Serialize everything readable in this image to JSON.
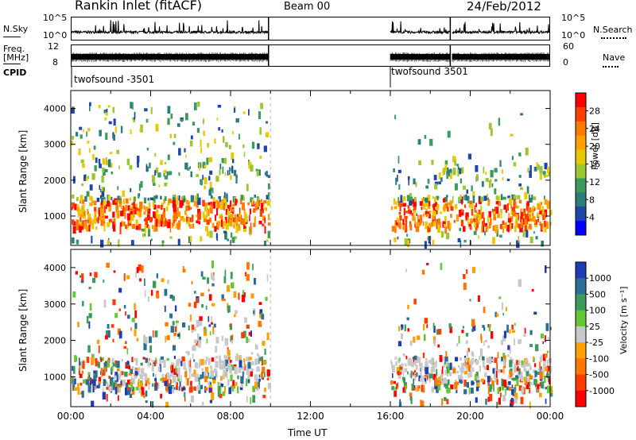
{
  "header": {
    "station": "Rankin Inlet (fitACF)",
    "beam": "Beam 00",
    "date": "24/Feb/2012"
  },
  "left_labels": {
    "nsky": "N.Sky",
    "freq_line1": "Freq.",
    "freq_line2": "[MHz]",
    "cpid": "CPID"
  },
  "right_labels": {
    "nsearch": "N.Search",
    "nave": "Nave"
  },
  "noise_axis_left": [
    "10^5",
    "10^0"
  ],
  "noise_axis_right": [
    "10^5",
    "10^0"
  ],
  "freq_axis_left": [
    "12",
    "8"
  ],
  "freq_axis_right": [
    "60",
    "0"
  ],
  "cpid_labels": [
    "twofsound -3501",
    "twofsound 3501"
  ],
  "chart_data": {
    "type": "heatmap",
    "time_ticks": [
      "00:00",
      "04:00",
      "08:00",
      "12:00",
      "16:00",
      "20:00",
      "00:00"
    ],
    "xlabel": "Time UT",
    "xlim_hours": [
      0,
      24
    ],
    "ylabel": "Slant Range [km]",
    "ylim_km": [
      180,
      4500
    ],
    "yticks": [
      "1000",
      "2000",
      "3000",
      "4000"
    ],
    "data_segments_hours": [
      [
        0,
        9.9
      ],
      [
        16.0,
        19.0
      ],
      [
        19.1,
        24
      ]
    ],
    "panels": [
      {
        "parameter": "Power",
        "colorbar_label": "Power [dB]",
        "colorbar_ticks": [
          "28",
          "24",
          "20",
          "16",
          "12",
          "8",
          "4"
        ],
        "range": [
          0,
          32
        ],
        "colors": [
          "#ff0000",
          "#ff4000",
          "#ff7a00",
          "#ffa000",
          "#e8c800",
          "#9bc832",
          "#3c9b5a",
          "#2a7d7d",
          "#1e46aa",
          "#0000ff"
        ]
      },
      {
        "parameter": "Velocity",
        "colorbar_label": "Velocity [m s⁻¹]",
        "colorbar_ticks": [
          "1000",
          "500",
          "100",
          "25",
          "-25",
          "-100",
          "-500",
          "-1000"
        ],
        "range": [
          -1000,
          1000
        ],
        "colors": [
          "#1e3cb4",
          "#2a6e96",
          "#3c9b5a",
          "#64c832",
          "#c8c8c8",
          "#ffa000",
          "#ff7800",
          "#ff3c00",
          "#ff0000"
        ]
      }
    ]
  }
}
